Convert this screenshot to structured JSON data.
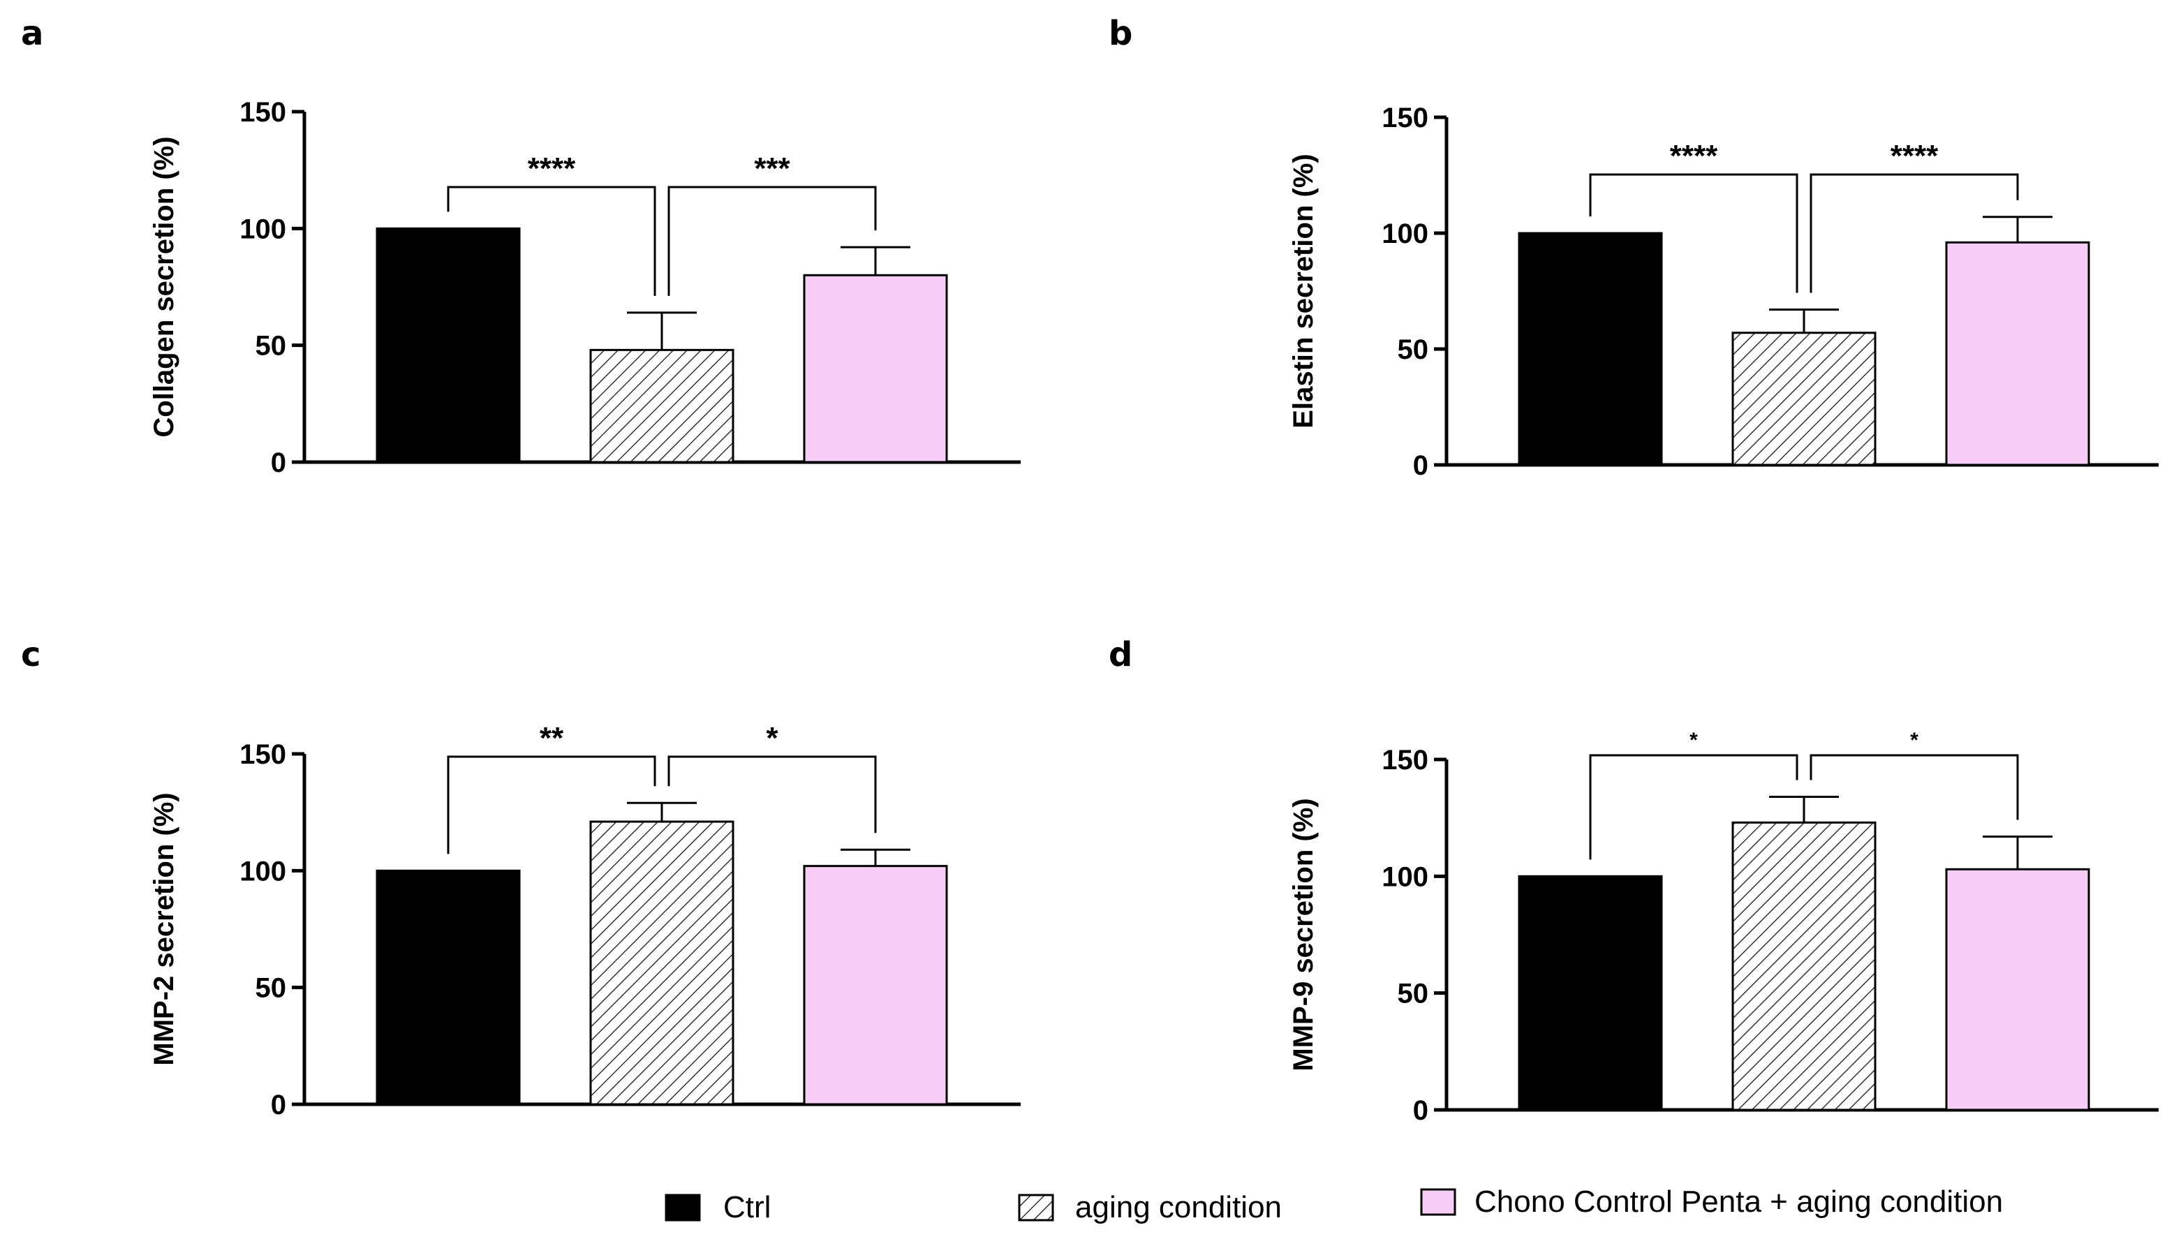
{
  "legend": [
    {
      "label": "Ctrl",
      "fill": "#000000",
      "pattern": "solid"
    },
    {
      "label": "aging condition",
      "fill": "#ffffff",
      "pattern": "hatch"
    },
    {
      "label": "Chono Control Penta  + aging condition",
      "fill": "#f7cdf7",
      "pattern": "solid"
    }
  ],
  "colors": {
    "ctrl": "#000000",
    "aging_hatch": "#333333",
    "chono": "#f7cdf7"
  },
  "chart_data": [
    {
      "panel": "a",
      "type": "bar",
      "ylabel": "Collagen secretion (%)",
      "ylim": [
        0,
        150
      ],
      "yticks": [
        0,
        50,
        100,
        150
      ],
      "categories": [
        "Ctrl",
        "aging condition",
        "Chono Control Penta  + aging condition"
      ],
      "values": [
        100,
        48,
        80
      ],
      "errors": [
        0,
        16,
        12
      ],
      "significance": [
        {
          "between": [
            0,
            1
          ],
          "label": "****"
        },
        {
          "between": [
            1,
            2
          ],
          "label": "***"
        }
      ]
    },
    {
      "panel": "b",
      "type": "bar",
      "ylabel": "Elastin secretion (%)",
      "ylim": [
        0,
        150
      ],
      "yticks": [
        0,
        50,
        100,
        150
      ],
      "categories": [
        "Ctrl",
        "aging condition",
        "Chono Control Penta  + aging condition"
      ],
      "values": [
        100,
        57,
        96
      ],
      "errors": [
        0,
        10,
        11
      ],
      "significance": [
        {
          "between": [
            0,
            1
          ],
          "label": "****"
        },
        {
          "between": [
            1,
            2
          ],
          "label": "****"
        }
      ]
    },
    {
      "panel": "c",
      "type": "bar",
      "ylabel": "MMP-2 secretion (%)",
      "ylim": [
        0,
        150
      ],
      "yticks": [
        0,
        50,
        100,
        150
      ],
      "categories": [
        "Ctrl",
        "aging condition",
        "Chono Control Penta  + aging condition"
      ],
      "values": [
        100,
        121,
        102
      ],
      "errors": [
        0,
        8,
        7
      ],
      "significance": [
        {
          "between": [
            0,
            1
          ],
          "label": "**"
        },
        {
          "between": [
            1,
            2
          ],
          "label": "*"
        }
      ]
    },
    {
      "panel": "d",
      "type": "bar",
      "ylabel": "MMP-9 secretion (%)",
      "ylim": [
        0,
        150
      ],
      "yticks": [
        0,
        50,
        100,
        150
      ],
      "categories": [
        "Ctrl",
        "aging condition",
        "Chono Control Penta  + aging condition"
      ],
      "values": [
        100,
        123,
        103
      ],
      "errors": [
        0,
        11,
        14
      ],
      "significance": [
        {
          "between": [
            0,
            1
          ],
          "label": "*"
        },
        {
          "between": [
            1,
            2
          ],
          "label": "*"
        }
      ]
    }
  ]
}
